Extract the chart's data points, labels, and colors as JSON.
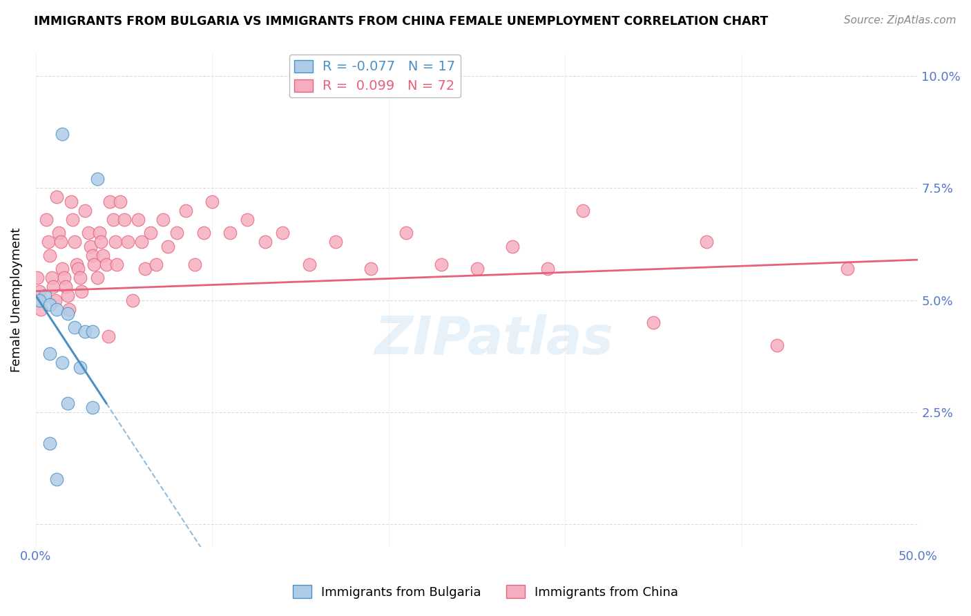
{
  "title": "IMMIGRANTS FROM BULGARIA VS IMMIGRANTS FROM CHINA FEMALE UNEMPLOYMENT CORRELATION CHART",
  "source": "Source: ZipAtlas.com",
  "ylabel": "Female Unemployment",
  "xlim": [
    0.0,
    0.5
  ],
  "ylim": [
    -0.005,
    0.105
  ],
  "bulgaria_R": "-0.077",
  "bulgaria_N": "17",
  "china_R": "0.099",
  "china_N": "72",
  "bulgaria_color": "#aecce8",
  "china_color": "#f5aec0",
  "bulgaria_line_color": "#4a90c4",
  "china_line_color": "#e8607a",
  "watermark": "ZIPatlas",
  "bulgaria_scatter_x": [
    0.015,
    0.035,
    0.005,
    0.002,
    0.008,
    0.012,
    0.018,
    0.022,
    0.028,
    0.032,
    0.008,
    0.015,
    0.025,
    0.018,
    0.032,
    0.008,
    0.012
  ],
  "bulgaria_scatter_y": [
    0.087,
    0.077,
    0.051,
    0.05,
    0.049,
    0.048,
    0.047,
    0.044,
    0.043,
    0.043,
    0.038,
    0.036,
    0.035,
    0.027,
    0.026,
    0.018,
    0.01
  ],
  "china_scatter_x": [
    0.001,
    0.002,
    0.003,
    0.006,
    0.007,
    0.008,
    0.009,
    0.01,
    0.011,
    0.012,
    0.013,
    0.014,
    0.015,
    0.016,
    0.017,
    0.018,
    0.019,
    0.02,
    0.021,
    0.022,
    0.023,
    0.024,
    0.025,
    0.026,
    0.028,
    0.03,
    0.031,
    0.032,
    0.033,
    0.035,
    0.036,
    0.037,
    0.038,
    0.04,
    0.041,
    0.042,
    0.044,
    0.045,
    0.046,
    0.048,
    0.05,
    0.052,
    0.055,
    0.058,
    0.06,
    0.062,
    0.065,
    0.068,
    0.072,
    0.075,
    0.08,
    0.085,
    0.09,
    0.095,
    0.1,
    0.11,
    0.12,
    0.13,
    0.14,
    0.155,
    0.17,
    0.19,
    0.21,
    0.23,
    0.25,
    0.27,
    0.29,
    0.31,
    0.35,
    0.38,
    0.42,
    0.46
  ],
  "china_scatter_y": [
    0.055,
    0.052,
    0.048,
    0.068,
    0.063,
    0.06,
    0.055,
    0.053,
    0.05,
    0.073,
    0.065,
    0.063,
    0.057,
    0.055,
    0.053,
    0.051,
    0.048,
    0.072,
    0.068,
    0.063,
    0.058,
    0.057,
    0.055,
    0.052,
    0.07,
    0.065,
    0.062,
    0.06,
    0.058,
    0.055,
    0.065,
    0.063,
    0.06,
    0.058,
    0.042,
    0.072,
    0.068,
    0.063,
    0.058,
    0.072,
    0.068,
    0.063,
    0.05,
    0.068,
    0.063,
    0.057,
    0.065,
    0.058,
    0.068,
    0.062,
    0.065,
    0.07,
    0.058,
    0.065,
    0.072,
    0.065,
    0.068,
    0.063,
    0.065,
    0.058,
    0.063,
    0.057,
    0.065,
    0.058,
    0.057,
    0.062,
    0.057,
    0.07,
    0.045,
    0.063,
    0.04,
    0.057
  ],
  "background_color": "#ffffff",
  "grid_color": "#d8d8d8",
  "xtick_vals": [
    0.0,
    0.1,
    0.2,
    0.3,
    0.4,
    0.5
  ],
  "ytick_vals": [
    0.0,
    0.025,
    0.05,
    0.075,
    0.1
  ]
}
